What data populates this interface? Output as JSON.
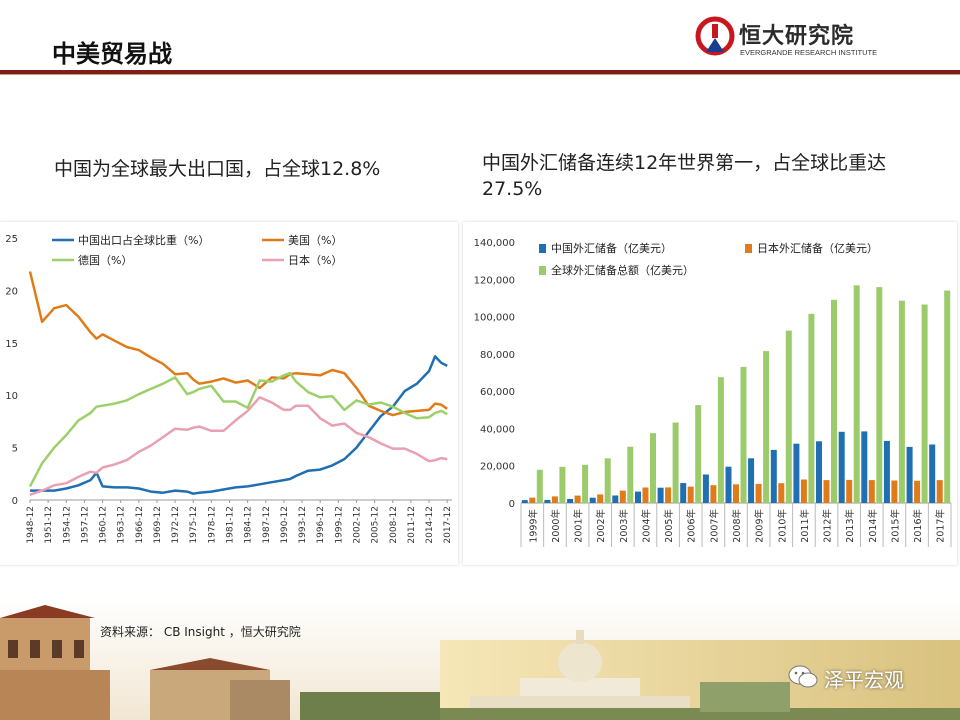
{
  "header": {
    "title": "中美贸易战",
    "logo_name": "恒大研究院",
    "logo_sub": "EVERGRANDE RESEARCH INSTITUTE"
  },
  "subtitles": {
    "left": "中国为全球最大出口国，占全球12.8%",
    "right": "中国外汇储备连续12年世界第一，占全球比重达27.5%"
  },
  "source": "资料来源：  CB Insight ，恒大研究院",
  "watermark": "泽平宏观",
  "colors": {
    "header_rule": "#7a1f1a",
    "china": "#1f6fb2",
    "usa": "#e07b1a",
    "germany": "#9bd06a",
    "japan": "#e9a0b0",
    "bar_china": "#1f6fb2",
    "bar_japan": "#e07b1a",
    "bar_world": "#9ccb6b"
  },
  "chart_data": [
    {
      "type": "line",
      "ylim": [
        0,
        25
      ],
      "yticks": [
        0,
        5,
        10,
        15,
        20,
        25
      ],
      "xticks": [
        "1948-12",
        "1951-12",
        "1954-12",
        "1957-12",
        "1960-12",
        "1963-12",
        "1966-12",
        "1969-12",
        "1972-12",
        "1975-12",
        "1978-12",
        "1981-12",
        "1984-12",
        "1987-12",
        "1990-12",
        "1993-12",
        "1996-12",
        "1999-12",
        "2002-12",
        "2005-12",
        "2008-12",
        "2011-12",
        "2014-12",
        "2017-12"
      ],
      "x": [
        1948,
        1950,
        1952,
        1954,
        1956,
        1958,
        1959,
        1960,
        1962,
        1964,
        1966,
        1968,
        1970,
        1972,
        1974,
        1975,
        1976,
        1978,
        1980,
        1982,
        1984,
        1986,
        1988,
        1990,
        1991,
        1992,
        1994,
        1996,
        1998,
        2000,
        2002,
        2004,
        2006,
        2008,
        2010,
        2012,
        2014,
        2015,
        2016,
        2017
      ],
      "series": [
        {
          "name": "中国出口占全球比重（%）",
          "color_key": "china",
          "values": [
            0.9,
            0.9,
            0.9,
            1.1,
            1.4,
            1.9,
            2.6,
            1.3,
            1.2,
            1.2,
            1.1,
            0.8,
            0.7,
            0.9,
            0.8,
            0.6,
            0.7,
            0.8,
            1.0,
            1.2,
            1.3,
            1.5,
            1.7,
            1.9,
            2.0,
            2.3,
            2.8,
            2.9,
            3.3,
            3.9,
            5.0,
            6.5,
            8.0,
            8.9,
            10.4,
            11.1,
            12.3,
            13.7,
            13.1,
            12.8
          ]
        },
        {
          "name": "美国（%）",
          "color_key": "usa",
          "values": [
            21.8,
            17.0,
            18.3,
            18.6,
            17.5,
            16.0,
            15.4,
            15.8,
            15.2,
            14.6,
            14.3,
            13.6,
            13.0,
            12.0,
            12.1,
            11.5,
            11.1,
            11.3,
            11.6,
            11.2,
            11.4,
            10.7,
            11.7,
            11.6,
            12.0,
            12.1,
            12.0,
            11.9,
            12.4,
            12.1,
            10.7,
            9.0,
            8.5,
            8.1,
            8.4,
            8.5,
            8.6,
            9.2,
            9.1,
            8.7
          ]
        },
        {
          "name": "德国（%）",
          "color_key": "germany",
          "values": [
            1.3,
            3.5,
            5.0,
            6.2,
            7.6,
            8.3,
            8.9,
            9.0,
            9.2,
            9.5,
            10.1,
            10.6,
            11.1,
            11.7,
            10.1,
            10.3,
            10.6,
            10.9,
            9.4,
            9.4,
            8.8,
            11.4,
            11.3,
            11.9,
            12.1,
            11.3,
            10.3,
            9.8,
            9.9,
            8.6,
            9.5,
            9.1,
            9.3,
            8.9,
            8.3,
            7.8,
            7.9,
            8.3,
            8.5,
            8.2
          ]
        },
        {
          "name": "日本（%）",
          "color_key": "japan",
          "values": [
            0.5,
            0.9,
            1.4,
            1.6,
            2.2,
            2.7,
            2.6,
            3.1,
            3.4,
            3.8,
            4.6,
            5.2,
            6.0,
            6.8,
            6.7,
            6.9,
            7.0,
            6.6,
            6.6,
            7.6,
            8.5,
            9.8,
            9.3,
            8.6,
            8.6,
            9.0,
            9.0,
            7.8,
            7.1,
            7.3,
            6.4,
            6.0,
            5.4,
            4.9,
            4.9,
            4.4,
            3.7,
            3.8,
            4.0,
            3.9
          ]
        }
      ]
    },
    {
      "type": "bar",
      "ylim": [
        0,
        140000
      ],
      "yticks": [
        0,
        20000,
        40000,
        60000,
        80000,
        100000,
        120000,
        140000
      ],
      "ytick_labels": [
        "0",
        "20,000",
        "40,000",
        "60,000",
        "80,000",
        "100,000",
        "120,000",
        "140,000"
      ],
      "categories": [
        "1999年",
        "2000年",
        "2001年",
        "2002年",
        "2003年",
        "2004年",
        "2005年",
        "2006年",
        "2007年",
        "2008年",
        "2009年",
        "2010年",
        "2011年",
        "2012年",
        "2013年",
        "2014年",
        "2015年",
        "2016年",
        "2017年"
      ],
      "series": [
        {
          "name": "中国外汇储备（亿美元）",
          "color_key": "bar_china",
          "values": [
            1547,
            1656,
            2122,
            2864,
            4033,
            6099,
            8189,
            10663,
            15282,
            19460,
            23992,
            28473,
            31812,
            33116,
            38213,
            38430,
            33304,
            30105,
            31399
          ]
        },
        {
          "name": "日本外汇储备（亿美元）",
          "color_key": "bar_japan",
          "values": [
            2869,
            3549,
            3952,
            4614,
            6635,
            8335,
            8347,
            8796,
            9530,
            10037,
            10245,
            10613,
            12583,
            12300,
            12373,
            12310,
            12080,
            11890,
            12300
          ]
        },
        {
          "name": "全球外汇储备总额（亿美元）",
          "color_key": "bar_world",
          "values": [
            17800,
            19400,
            20500,
            24000,
            30200,
            37500,
            43200,
            52500,
            67500,
            73000,
            81500,
            92500,
            101500,
            109000,
            116800,
            115800,
            108500,
            106500,
            114000
          ]
        }
      ]
    }
  ]
}
